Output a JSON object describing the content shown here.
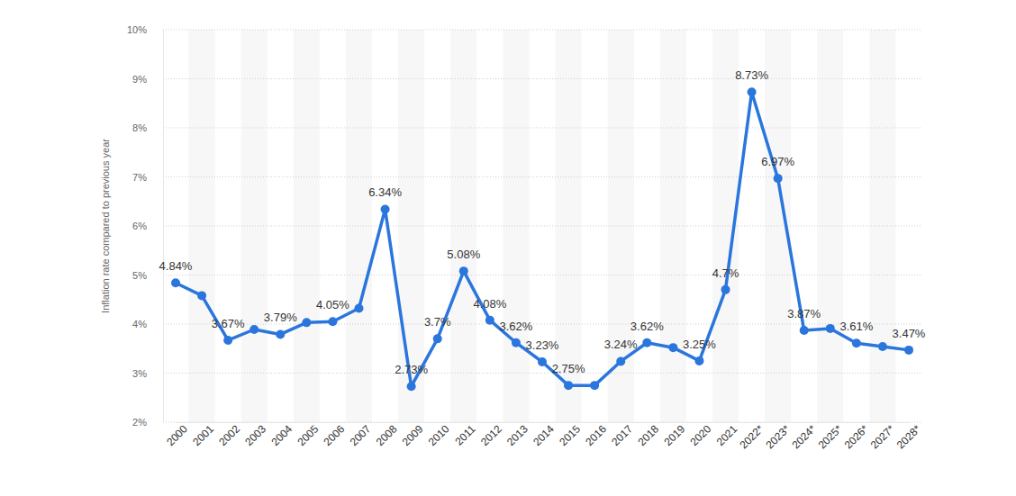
{
  "chart_data": {
    "type": "line",
    "y_label": "Inflation rate compared to previous year",
    "categories": [
      "2000",
      "2001",
      "2002",
      "2003",
      "2004",
      "2005",
      "2006",
      "2007",
      "2008",
      "2009",
      "2010",
      "2011",
      "2012",
      "2013",
      "2014",
      "2015",
      "2016",
      "2017",
      "2018",
      "2019",
      "2020",
      "2021",
      "2022*",
      "2023*",
      "2024*",
      "2025*",
      "2026*",
      "2027*",
      "2028*"
    ],
    "values": [
      4.84,
      4.58,
      3.67,
      3.89,
      3.79,
      4.03,
      4.05,
      4.32,
      6.34,
      2.73,
      3.7,
      5.08,
      4.08,
      3.62,
      3.23,
      2.75,
      2.75,
      3.24,
      3.62,
      3.52,
      3.25,
      4.7,
      8.73,
      6.97,
      3.87,
      3.91,
      3.61,
      3.54,
      3.47
    ],
    "value_labels": [
      "4.84%",
      null,
      "3.67%",
      null,
      "3.79%",
      null,
      "4.05%",
      null,
      "6.34%",
      "2.73%",
      "3.7%",
      "5.08%",
      "4.08%",
      "3.62%",
      "3.23%",
      "2.75%",
      null,
      "3.24%",
      "3.62%",
      null,
      "3.25%",
      "4.7%",
      "8.73%",
      "6.97%",
      "3.87%",
      null,
      "3.61%",
      null,
      "3.47%"
    ],
    "data_labels": true,
    "color": "#2a76dd",
    "marker": "circle",
    "ylim": [
      2,
      10
    ],
    "yticks": [
      {
        "value": 2,
        "label": "2%"
      },
      {
        "value": 3,
        "label": "3%"
      },
      {
        "value": 4,
        "label": "4%"
      },
      {
        "value": 5,
        "label": "5%"
      },
      {
        "value": 6,
        "label": "6%"
      },
      {
        "value": 7,
        "label": "7%"
      },
      {
        "value": 8,
        "label": "8%"
      },
      {
        "value": 9,
        "label": "9%"
      },
      {
        "value": 10,
        "label": "10%"
      }
    ],
    "grid": true
  }
}
